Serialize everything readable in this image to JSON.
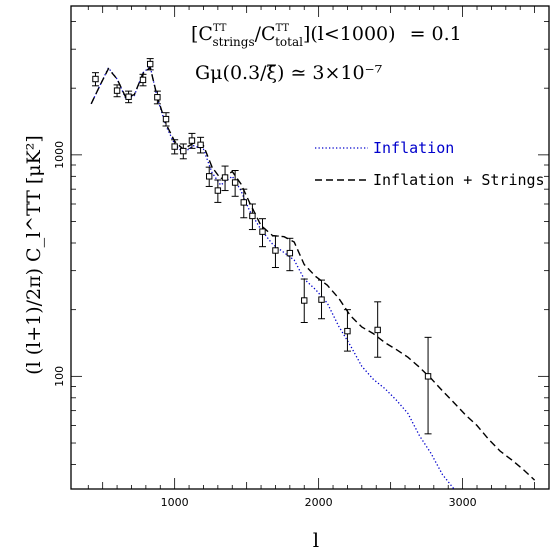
{
  "chart_data": {
    "type": "line",
    "title": "",
    "xlabel": "l",
    "ylabel": "(l (l+1)/2π) C_l^TT [μK²]",
    "xlim": [
      280,
      3600
    ],
    "ylim": [
      31,
      4700
    ],
    "yscale": "log",
    "x_ticks": [
      1000,
      2000,
      3000
    ],
    "y_ticks": [
      100,
      1000
    ],
    "annotations": {
      "ratio_prefix": "[C",
      "ratio_sup1": "TT",
      "ratio_sub1": "strings",
      "ratio_mid": "/C",
      "ratio_sup2": "TT",
      "ratio_sub2": "total",
      "ratio_suffix": "](l<1000)",
      "ratio_eq": "= 0.1",
      "gmu_text": "Gμ(0.3/ξ̄) ≃ 3×10⁻⁷"
    },
    "series": [
      {
        "name": "Inflation",
        "color": "#0000cc",
        "style": "dotted",
        "x": [
          420,
          480,
          540,
          600,
          660,
          720,
          780,
          830,
          880,
          940,
          1000,
          1060,
          1130,
          1200,
          1260,
          1320,
          1400,
          1460,
          1520,
          1600,
          1680,
          1760,
          1830,
          1900,
          1980,
          2060,
          2140,
          2220,
          2300,
          2380,
          2460,
          2540,
          2620,
          2700,
          2780,
          2860,
          2940
        ],
        "y": [
          1700,
          2050,
          2470,
          2200,
          1800,
          1850,
          2350,
          2500,
          1800,
          1350,
          1120,
          1020,
          1100,
          1060,
          830,
          730,
          800,
          690,
          560,
          460,
          395,
          362,
          335,
          275,
          246,
          214,
          168,
          138,
          111,
          97,
          88,
          78,
          68,
          54,
          45,
          36,
          31
        ]
      },
      {
        "name": "Inflation + Strings",
        "color": "#000000",
        "style": "dashed",
        "x": [
          420,
          480,
          540,
          600,
          660,
          720,
          780,
          830,
          880,
          940,
          1000,
          1060,
          1130,
          1200,
          1260,
          1320,
          1400,
          1460,
          1520,
          1600,
          1680,
          1760,
          1830,
          1900,
          1980,
          2060,
          2140,
          2220,
          2300,
          2380,
          2460,
          2540,
          2620,
          2700,
          2780,
          2860,
          2940,
          3020,
          3100,
          3180,
          3260,
          3340,
          3420,
          3500
        ],
        "y": [
          1700,
          2050,
          2450,
          2200,
          1820,
          1870,
          2330,
          2480,
          1820,
          1380,
          1150,
          1060,
          1130,
          1100,
          880,
          780,
          840,
          740,
          610,
          480,
          432,
          427,
          404,
          320,
          282,
          258,
          225,
          188,
          167,
          156,
          142,
          132,
          122,
          110,
          98,
          86,
          76,
          67,
          60,
          52,
          46,
          42,
          38,
          34
        ]
      }
    ],
    "data_points": {
      "name": "data",
      "l": [
        450,
        600,
        680,
        780,
        830,
        880,
        940,
        1000,
        1060,
        1120,
        1180,
        1240,
        1300,
        1350,
        1420,
        1480,
        1540,
        1610,
        1700,
        1800,
        1900,
        2020,
        2200,
        2410,
        2760
      ],
      "y": [
        2200,
        1950,
        1830,
        2180,
        2570,
        1820,
        1450,
        1090,
        1040,
        1160,
        1110,
        800,
        690,
        790,
        750,
        610,
        530,
        450,
        370,
        360,
        220,
        222,
        160,
        162,
        100
      ],
      "err_up": [
        150,
        120,
        110,
        130,
        150,
        120,
        100,
        80,
        80,
        90,
        90,
        80,
        80,
        100,
        100,
        90,
        70,
        65,
        60,
        60,
        55,
        50,
        40,
        55,
        50
      ],
      "err_dn": [
        150,
        120,
        110,
        130,
        150,
        120,
        100,
        80,
        80,
        90,
        90,
        80,
        80,
        100,
        100,
        90,
        70,
        65,
        60,
        60,
        45,
        40,
        30,
        40,
        45
      ]
    },
    "legend": [
      {
        "label": "Inflation",
        "color": "#0000cc",
        "style": "dotted"
      },
      {
        "label": "Inflation + Strings",
        "color": "#000000",
        "style": "dashed"
      }
    ]
  }
}
